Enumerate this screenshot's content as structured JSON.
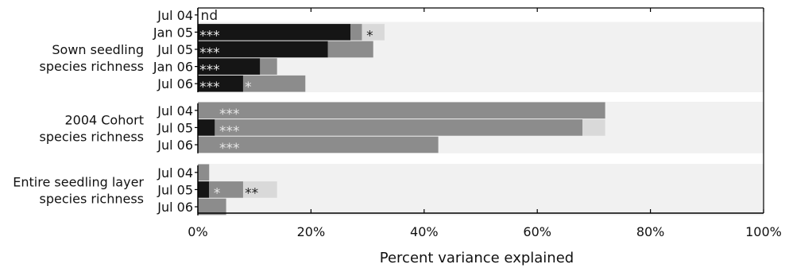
{
  "chart_data": {
    "type": "bar",
    "orientation": "horizontal",
    "stacked": true,
    "title": "",
    "xlabel": "Percent variance explained",
    "xlim": [
      0,
      100
    ],
    "x_ticks": [
      "0%",
      "20%",
      "40%",
      "60%",
      "80%",
      "100%"
    ],
    "grid": false,
    "legend": "none",
    "colors": {
      "dark": "#151515",
      "medium": "#8c8c8c",
      "light": "#d9d9d9",
      "band": "#f1f1f1"
    },
    "groups": [
      {
        "label_lines": [
          "Sown seedling",
          "species richness"
        ],
        "rows": [
          {
            "label": "Jul 04",
            "segments": [],
            "annotations": [
              {
                "text": "nd",
                "x": 0.5,
                "tone": "dark"
              }
            ]
          },
          {
            "label": "Jan 05",
            "segments": [
              {
                "value": 27,
                "color": "dark"
              },
              {
                "value": 2,
                "color": "medium"
              },
              {
                "value": 4,
                "color": "light"
              }
            ],
            "annotations": [
              {
                "text": "***",
                "x": 0.3,
                "tone": "light"
              },
              {
                "text": "*",
                "x": 29.8,
                "tone": "dark"
              }
            ]
          },
          {
            "label": "Jul 05",
            "segments": [
              {
                "value": 23,
                "color": "dark"
              },
              {
                "value": 8,
                "color": "medium"
              }
            ],
            "annotations": [
              {
                "text": "***",
                "x": 0.3,
                "tone": "light"
              }
            ]
          },
          {
            "label": "Jan 06",
            "segments": [
              {
                "value": 11,
                "color": "dark"
              },
              {
                "value": 3,
                "color": "medium"
              }
            ],
            "annotations": [
              {
                "text": "***",
                "x": 0.3,
                "tone": "light"
              }
            ]
          },
          {
            "label": "Jul 06",
            "segments": [
              {
                "value": 8,
                "color": "dark"
              },
              {
                "value": 11,
                "color": "medium"
              }
            ],
            "annotations": [
              {
                "text": "***",
                "x": 0.3,
                "tone": "light"
              },
              {
                "text": "*",
                "x": 8.3,
                "tone": "light"
              }
            ]
          }
        ]
      },
      {
        "label_lines": [
          "2004 Cohort",
          "species richness"
        ],
        "rows": [
          {
            "label": "Jul 04",
            "segments": [
              {
                "value": 72,
                "color": "medium"
              }
            ],
            "annotations": [
              {
                "text": "***",
                "x": 3.8,
                "tone": "light"
              }
            ]
          },
          {
            "label": "Jul 05",
            "segments": [
              {
                "value": 3,
                "color": "dark"
              },
              {
                "value": 65,
                "color": "medium"
              },
              {
                "value": 4,
                "color": "light"
              }
            ],
            "annotations": [
              {
                "text": "***",
                "x": 3.8,
                "tone": "light"
              }
            ]
          },
          {
            "label": "Jul 06",
            "segments": [
              {
                "value": 42.5,
                "color": "medium"
              }
            ],
            "annotations": [
              {
                "text": "***",
                "x": 3.8,
                "tone": "light"
              }
            ]
          }
        ]
      },
      {
        "label_lines": [
          "Entire seedling layer",
          "species richness"
        ],
        "rows": [
          {
            "label": "Jul 04",
            "segments": [
              {
                "value": 2,
                "color": "medium"
              }
            ],
            "annotations": []
          },
          {
            "label": "Jul 05",
            "segments": [
              {
                "value": 2,
                "color": "dark"
              },
              {
                "value": 6,
                "color": "medium"
              },
              {
                "value": 6,
                "color": "light"
              }
            ],
            "annotations": [
              {
                "text": "*",
                "x": 2.8,
                "tone": "light"
              },
              {
                "text": "**",
                "x": 8.3,
                "tone": "dark"
              }
            ]
          },
          {
            "label": "Jul 06",
            "segments": [
              {
                "value": 5,
                "color": "medium"
              }
            ],
            "annotations": []
          }
        ]
      }
    ]
  }
}
